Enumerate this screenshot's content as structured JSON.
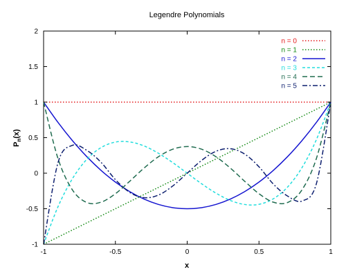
{
  "chart_data": {
    "type": "line",
    "title": "Legendre Polynomials",
    "xlabel": "x",
    "ylabel_base": "P",
    "ylabel_sub": "n",
    "ylabel_tail": "(x)",
    "xlim": [
      -1,
      1
    ],
    "ylim": [
      -1,
      2
    ],
    "x_ticks": [
      -1,
      -0.5,
      0,
      0.5,
      1
    ],
    "x_tick_labels": [
      "-1",
      "-0.5",
      "0",
      "0.5",
      "1"
    ],
    "y_ticks": [
      -1,
      -0.5,
      0,
      0.5,
      1,
      1.5,
      2
    ],
    "y_tick_labels": [
      "-1",
      "-0.5",
      "0",
      "0.5",
      "1",
      "1.5",
      "2"
    ],
    "grid": false,
    "legend_position": "top-right",
    "x": [
      -1,
      -0.9,
      -0.8,
      -0.7,
      -0.6,
      -0.5,
      -0.4,
      -0.3,
      -0.2,
      -0.1,
      0,
      0.1,
      0.2,
      0.3,
      0.4,
      0.5,
      0.6,
      0.7,
      0.8,
      0.9,
      1
    ],
    "series": [
      {
        "name": "n = 0",
        "color": "#e41a1c",
        "style": "dotted",
        "values": [
          1,
          1,
          1,
          1,
          1,
          1,
          1,
          1,
          1,
          1,
          1,
          1,
          1,
          1,
          1,
          1,
          1,
          1,
          1,
          1,
          1
        ]
      },
      {
        "name": "n = 1",
        "color": "#118811",
        "style": "dotted",
        "values": [
          -1,
          -0.9,
          -0.8,
          -0.7,
          -0.6,
          -0.5,
          -0.4,
          -0.3,
          -0.2,
          -0.1,
          0,
          0.1,
          0.2,
          0.3,
          0.4,
          0.5,
          0.6,
          0.7,
          0.8,
          0.9,
          1
        ]
      },
      {
        "name": "n = 2",
        "color": "#1515d0",
        "style": "solid",
        "values": [
          1,
          0.715,
          0.46,
          0.235,
          0.04,
          -0.125,
          -0.26,
          -0.365,
          -0.44,
          -0.485,
          -0.5,
          -0.485,
          -0.44,
          -0.365,
          -0.26,
          -0.125,
          0.04,
          0.235,
          0.46,
          0.715,
          1
        ]
      },
      {
        "name": "n = 3",
        "color": "#22dddd",
        "style": "dashed",
        "values": [
          -1,
          -0.473,
          -0.08,
          0.193,
          0.36,
          0.438,
          0.44,
          0.383,
          0.28,
          0.148,
          0,
          -0.148,
          -0.28,
          -0.383,
          -0.44,
          -0.438,
          -0.36,
          -0.193,
          0.08,
          0.473,
          1
        ]
      },
      {
        "name": "n = 4",
        "color": "#1f6b4f",
        "style": "longdash",
        "values": [
          1,
          0.208,
          -0.233,
          -0.412,
          -0.408,
          -0.289,
          -0.113,
          0.073,
          0.232,
          0.338,
          0.375,
          0.338,
          0.232,
          0.073,
          -0.113,
          -0.289,
          -0.408,
          -0.412,
          -0.233,
          0.208,
          1
        ]
      },
      {
        "name": "n = 5",
        "color": "#0c1e6e",
        "style": "dashdot",
        "values": [
          -1,
          0.146,
          0.391,
          0.323,
          0.153,
          -0.09,
          -0.27,
          -0.345,
          -0.308,
          -0.179,
          0,
          0.179,
          0.308,
          0.345,
          0.27,
          0.09,
          -0.153,
          -0.323,
          -0.391,
          -0.146,
          1
        ]
      }
    ]
  }
}
